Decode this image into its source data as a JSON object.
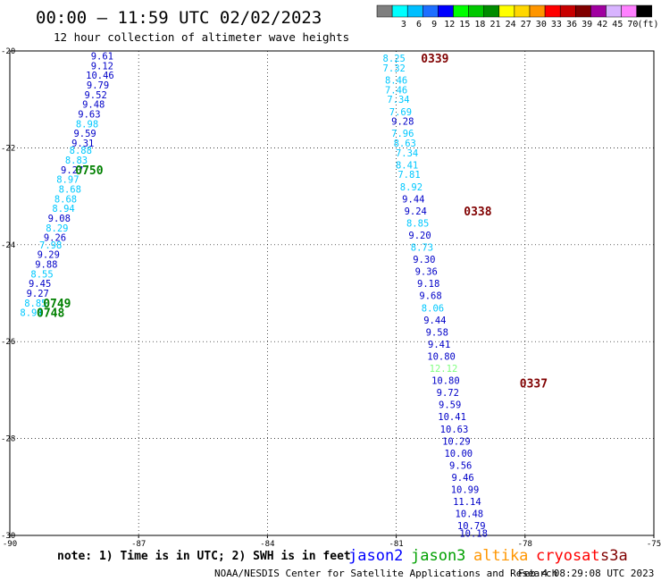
{
  "header": {
    "title": "00:00 – 11:59 UTC 02/02/2023",
    "subtitle": "12 hour collection of altimeter wave heights"
  },
  "legend": {
    "bins": [
      {
        "color": "#7f7f7f",
        "label": ""
      },
      {
        "color": "#00ffff",
        "label": "3"
      },
      {
        "color": "#00bfff",
        "label": "6"
      },
      {
        "color": "#1e6fff",
        "label": "9"
      },
      {
        "color": "#0000ff",
        "label": "12"
      },
      {
        "color": "#00ff00",
        "label": "15"
      },
      {
        "color": "#00c800",
        "label": "18"
      },
      {
        "color": "#008c00",
        "label": "21"
      },
      {
        "color": "#ffff00",
        "label": "24"
      },
      {
        "color": "#ffd700",
        "label": "27"
      },
      {
        "color": "#ff9600",
        "label": "30"
      },
      {
        "color": "#ff0000",
        "label": "33"
      },
      {
        "color": "#c80000",
        "label": "36"
      },
      {
        "color": "#800000",
        "label": "39"
      },
      {
        "color": "#a000a0",
        "label": "42"
      },
      {
        "color": "#d8b4ff",
        "label": "45"
      },
      {
        "color": "#ff80ff",
        "label": "70"
      },
      {
        "color": "#000000",
        "label": "(ft)"
      }
    ]
  },
  "axes": {
    "lon_range": [
      -90,
      -75
    ],
    "lat_range": [
      -30,
      -20
    ],
    "lon_ticks": [
      "-90",
      "-87",
      "-84",
      "-81",
      "-78",
      "-75"
    ],
    "lat_ticks": [
      "-20",
      "-22",
      "-24",
      "-26",
      "-28",
      "-30"
    ]
  },
  "colors": {
    "cyan_light": "#00c8ff",
    "blue_mid": "#1e6fff",
    "navy": "#0000c8",
    "lime": "#80ff80",
    "time_green": "#008000",
    "time_darkred": "#800000"
  },
  "track_west": [
    {
      "v": "9.61",
      "lon": -87.85,
      "lat": -20.1,
      "c": "navy"
    },
    {
      "v": "9.12",
      "lon": -87.85,
      "lat": -20.3,
      "c": "navy"
    },
    {
      "v": "10.46",
      "lon": -87.9,
      "lat": -20.5,
      "c": "navy"
    },
    {
      "v": "9.79",
      "lon": -87.95,
      "lat": -20.7,
      "c": "navy"
    },
    {
      "v": "9.52",
      "lon": -88.0,
      "lat": -20.9,
      "c": "navy"
    },
    {
      "v": "9.48",
      "lon": -88.05,
      "lat": -21.1,
      "c": "navy"
    },
    {
      "v": "9.63",
      "lon": -88.15,
      "lat": -21.3,
      "c": "navy"
    },
    {
      "v": "8.98",
      "lon": -88.2,
      "lat": -21.5,
      "c": "cyan_light"
    },
    {
      "v": "9.59",
      "lon": -88.25,
      "lat": -21.7,
      "c": "navy"
    },
    {
      "v": "9.31",
      "lon": -88.3,
      "lat": -21.9,
      "c": "navy"
    },
    {
      "v": "8.88",
      "lon": -88.35,
      "lat": -22.05,
      "c": "cyan_light"
    },
    {
      "v": "8.83",
      "lon": -88.45,
      "lat": -22.25,
      "c": "cyan_light"
    },
    {
      "v": "9.27",
      "lon": -88.55,
      "lat": -22.45,
      "c": "navy"
    },
    {
      "v": "8.68",
      "lon": -88.6,
      "lat": -22.85,
      "c": "cyan_light"
    },
    {
      "v": "8.97",
      "lon": -88.65,
      "lat": -22.65,
      "c": "cyan_light"
    },
    {
      "v": "8.68",
      "lon": -88.7,
      "lat": -23.05,
      "c": "cyan_light"
    },
    {
      "v": "8.94",
      "lon": -88.75,
      "lat": -23.25,
      "c": "cyan_light"
    },
    {
      "v": "9.08",
      "lon": -88.85,
      "lat": -23.45,
      "c": "navy"
    },
    {
      "v": "8.29",
      "lon": -88.9,
      "lat": -23.65,
      "c": "cyan_light"
    },
    {
      "v": "9.26",
      "lon": -88.95,
      "lat": -23.85,
      "c": "navy"
    },
    {
      "v": "7.98",
      "lon": -89.05,
      "lat": -24.0,
      "c": "cyan_light"
    },
    {
      "v": "9.29",
      "lon": -89.1,
      "lat": -24.2,
      "c": "navy"
    },
    {
      "v": "9.88",
      "lon": -89.15,
      "lat": -24.4,
      "c": "navy"
    },
    {
      "v": "8.55",
      "lon": -89.25,
      "lat": -24.6,
      "c": "cyan_light"
    },
    {
      "v": "9.45",
      "lon": -89.3,
      "lat": -24.8,
      "c": "navy"
    },
    {
      "v": "9.27",
      "lon": -89.35,
      "lat": -25.0,
      "c": "navy"
    },
    {
      "v": "8.85",
      "lon": -89.4,
      "lat": -25.2,
      "c": "cyan_light"
    },
    {
      "v": "8.94",
      "lon": -89.5,
      "lat": -25.4,
      "c": "cyan_light"
    }
  ],
  "times_west": [
    {
      "t": "0750",
      "lon": -88.15,
      "lat": -22.45,
      "c": "time_green"
    },
    {
      "t": "0749",
      "lon": -88.9,
      "lat": -25.2,
      "c": "time_green"
    },
    {
      "t": "0748",
      "lon": -89.05,
      "lat": -25.4,
      "c": "time_green"
    }
  ],
  "track_east": [
    {
      "v": "8.25",
      "lon": -81.05,
      "lat": -20.15,
      "c": "cyan_light"
    },
    {
      "v": "7.32",
      "lon": -81.05,
      "lat": -20.35,
      "c": "cyan_light"
    },
    {
      "v": "8.46",
      "lon": -81.0,
      "lat": -20.6,
      "c": "cyan_light"
    },
    {
      "v": "7.46",
      "lon": -81.0,
      "lat": -20.8,
      "c": "cyan_light"
    },
    {
      "v": "7.34",
      "lon": -80.95,
      "lat": -21.0,
      "c": "cyan_light"
    },
    {
      "v": "7.69",
      "lon": -80.9,
      "lat": -21.25,
      "c": "cyan_light"
    },
    {
      "v": "9.28",
      "lon": -80.85,
      "lat": -21.45,
      "c": "navy"
    },
    {
      "v": "7.96",
      "lon": -80.85,
      "lat": -21.7,
      "c": "cyan_light"
    },
    {
      "v": "8.63",
      "lon": -80.8,
      "lat": -21.9,
      "c": "cyan_light"
    },
    {
      "v": "7.34",
      "lon": -80.75,
      "lat": -22.1,
      "c": "cyan_light"
    },
    {
      "v": "8.41",
      "lon": -80.75,
      "lat": -22.35,
      "c": "cyan_light"
    },
    {
      "v": "7.81",
      "lon": -80.7,
      "lat": -22.55,
      "c": "cyan_light"
    },
    {
      "v": "8.92",
      "lon": -80.65,
      "lat": -22.8,
      "c": "cyan_light"
    },
    {
      "v": "9.44",
      "lon": -80.6,
      "lat": -23.05,
      "c": "navy"
    },
    {
      "v": "9.24",
      "lon": -80.55,
      "lat": -23.3,
      "c": "navy"
    },
    {
      "v": "8.85",
      "lon": -80.5,
      "lat": -23.55,
      "c": "cyan_light"
    },
    {
      "v": "9.20",
      "lon": -80.45,
      "lat": -23.8,
      "c": "navy"
    },
    {
      "v": "8.73",
      "lon": -80.4,
      "lat": -24.05,
      "c": "cyan_light"
    },
    {
      "v": "9.30",
      "lon": -80.35,
      "lat": -24.3,
      "c": "navy"
    },
    {
      "v": "9.36",
      "lon": -80.3,
      "lat": -24.55,
      "c": "navy"
    },
    {
      "v": "9.18",
      "lon": -80.25,
      "lat": -24.8,
      "c": "navy"
    },
    {
      "v": "9.68",
      "lon": -80.2,
      "lat": -25.05,
      "c": "navy"
    },
    {
      "v": "8.06",
      "lon": -80.15,
      "lat": -25.3,
      "c": "cyan_light"
    },
    {
      "v": "9.44",
      "lon": -80.1,
      "lat": -25.55,
      "c": "navy"
    },
    {
      "v": "9.58",
      "lon": -80.05,
      "lat": -25.8,
      "c": "navy"
    },
    {
      "v": "9.41",
      "lon": -80.0,
      "lat": -26.05,
      "c": "navy"
    },
    {
      "v": "10.80",
      "lon": -79.95,
      "lat": -26.3,
      "c": "navy"
    },
    {
      "v": "12.12",
      "lon": -79.9,
      "lat": -26.55,
      "c": "lime"
    },
    {
      "v": "10.80",
      "lon": -79.85,
      "lat": -26.8,
      "c": "navy"
    },
    {
      "v": "9.72",
      "lon": -79.8,
      "lat": -27.05,
      "c": "navy"
    },
    {
      "v": "9.59",
      "lon": -79.75,
      "lat": -27.3,
      "c": "navy"
    },
    {
      "v": "10.41",
      "lon": -79.7,
      "lat": -27.55,
      "c": "navy"
    },
    {
      "v": "10.63",
      "lon": -79.65,
      "lat": -27.8,
      "c": "navy"
    },
    {
      "v": "10.29",
      "lon": -79.6,
      "lat": -28.05,
      "c": "navy"
    },
    {
      "v": "10.00",
      "lon": -79.55,
      "lat": -28.3,
      "c": "navy"
    },
    {
      "v": "9.56",
      "lon": -79.5,
      "lat": -28.55,
      "c": "navy"
    },
    {
      "v": "9.46",
      "lon": -79.45,
      "lat": -28.8,
      "c": "navy"
    },
    {
      "v": "10.99",
      "lon": -79.4,
      "lat": -29.05,
      "c": "navy"
    },
    {
      "v": "11.14",
      "lon": -79.35,
      "lat": -29.3,
      "c": "navy"
    },
    {
      "v": "10.48",
      "lon": -79.3,
      "lat": -29.55,
      "c": "navy"
    },
    {
      "v": "10.79",
      "lon": -79.25,
      "lat": -29.8,
      "c": "navy"
    },
    {
      "v": "10.18",
      "lon": -79.2,
      "lat": -29.95,
      "c": "navy"
    }
  ],
  "times_east": [
    {
      "t": "0339",
      "lon": -80.1,
      "lat": -20.15,
      "c": "time_darkred"
    },
    {
      "t": "0338",
      "lon": -79.1,
      "lat": -23.3,
      "c": "time_darkred"
    },
    {
      "t": "0337",
      "lon": -77.8,
      "lat": -26.85,
      "c": "time_darkred"
    }
  ],
  "footer": {
    "note": "note:  1) Time is in UTC;  2) SWH is in feet",
    "satellites": [
      {
        "name": "jason2",
        "color": "#0000ff"
      },
      {
        "name": "jason3",
        "color": "#00a000"
      },
      {
        "name": "altika",
        "color": "#ff9600"
      },
      {
        "name": "cryosat",
        "color": "#ff0000"
      },
      {
        "name": "s3a",
        "color": "#800000"
      }
    ],
    "credit": "NOAA/NESDIS Center for Satellite Applications and Research",
    "generated": "Feb  4 08:29:08 UTC 2023"
  }
}
